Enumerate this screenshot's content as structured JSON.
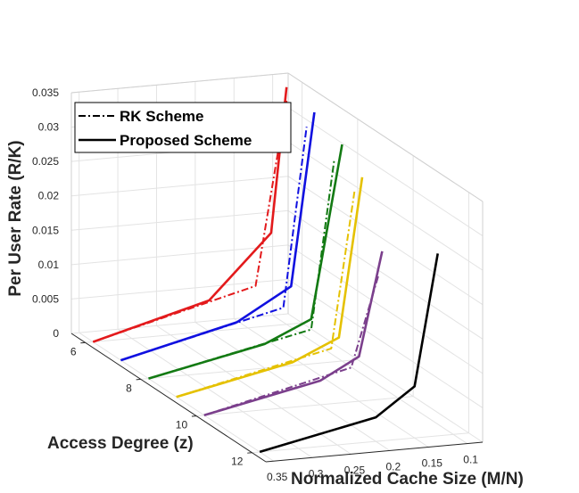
{
  "chart_data": {
    "type": "line",
    "view": "3d",
    "xlabel": "Normalized Cache Size (M/N)",
    "ylabel": "Access Degree (z)",
    "zlabel": "Per User Rate (R/K)",
    "x_ticks": [
      "0.1",
      "0.15",
      "0.2",
      "0.25",
      "0.3",
      "0.35"
    ],
    "y_ticks": [
      "6",
      "8",
      "10",
      "12"
    ],
    "z_ticks": [
      "0",
      "0.005",
      "0.01",
      "0.015",
      "0.02",
      "0.025",
      "0.03",
      "0.035"
    ],
    "xlim": [
      0.08,
      0.36
    ],
    "ylim": [
      5.5,
      12.5
    ],
    "zlim": [
      0,
      0.035
    ],
    "grid": true,
    "legend": {
      "position": "top-left",
      "entries": [
        {
          "label": "RK Scheme",
          "style": "dash-dot"
        },
        {
          "label": "Proposed Scheme",
          "style": "solid"
        }
      ]
    },
    "series": [
      {
        "z": 6,
        "scheme": "rk",
        "color": "#e31a1c",
        "points": [
          [
            0.35,
            0
          ],
          [
            0.14,
            0.006
          ],
          [
            0.1,
            0.0325
          ]
        ]
      },
      {
        "z": 6,
        "scheme": "proposed",
        "color": "#e31a1c",
        "points": [
          [
            0.35,
            0
          ],
          [
            0.2,
            0.0045
          ],
          [
            0.12,
            0.0135
          ],
          [
            0.1,
            0.0345
          ]
        ]
      },
      {
        "z": 7,
        "scheme": "rk",
        "color": "#1010e0",
        "points": [
          [
            0.35,
            0
          ],
          [
            0.14,
            0.0055
          ],
          [
            0.11,
            0.0315
          ]
        ]
      },
      {
        "z": 7,
        "scheme": "proposed",
        "color": "#1010e0",
        "points": [
          [
            0.35,
            0
          ],
          [
            0.2,
            0.004
          ],
          [
            0.13,
            0.0085
          ],
          [
            0.1,
            0.0335
          ]
        ]
      },
      {
        "z": 8,
        "scheme": "rk",
        "color": "#137a13",
        "points": [
          [
            0.35,
            0
          ],
          [
            0.14,
            0.005
          ],
          [
            0.11,
            0.0295
          ]
        ]
      },
      {
        "z": 8,
        "scheme": "proposed",
        "color": "#137a13",
        "points": [
          [
            0.35,
            0
          ],
          [
            0.2,
            0.0035
          ],
          [
            0.14,
            0.0065
          ],
          [
            0.1,
            0.0315
          ]
        ]
      },
      {
        "z": 9,
        "scheme": "rk",
        "color": "#e5c100",
        "points": [
          [
            0.35,
            0
          ],
          [
            0.15,
            0.005
          ],
          [
            0.12,
            0.0275
          ]
        ]
      },
      {
        "z": 9,
        "scheme": "proposed",
        "color": "#e5c100",
        "points": [
          [
            0.35,
            0
          ],
          [
            0.2,
            0.0035
          ],
          [
            0.14,
            0.0065
          ],
          [
            0.11,
            0.0295
          ]
        ]
      },
      {
        "z": 10,
        "scheme": "rk",
        "color": "#7b3f8c",
        "points": [
          [
            0.35,
            0
          ],
          [
            0.16,
            0.005
          ],
          [
            0.125,
            0.018
          ]
        ]
      },
      {
        "z": 10,
        "scheme": "proposed",
        "color": "#7b3f8c",
        "points": [
          [
            0.35,
            0
          ],
          [
            0.2,
            0.0035
          ],
          [
            0.15,
            0.0065
          ],
          [
            0.12,
            0.0215
          ]
        ]
      },
      {
        "z": 12,
        "scheme": "proposed",
        "color": "#000000",
        "points": [
          [
            0.35,
            0
          ],
          [
            0.2,
            0.0035
          ],
          [
            0.15,
            0.0075
          ],
          [
            0.12,
            0.0265
          ]
        ]
      }
    ]
  }
}
